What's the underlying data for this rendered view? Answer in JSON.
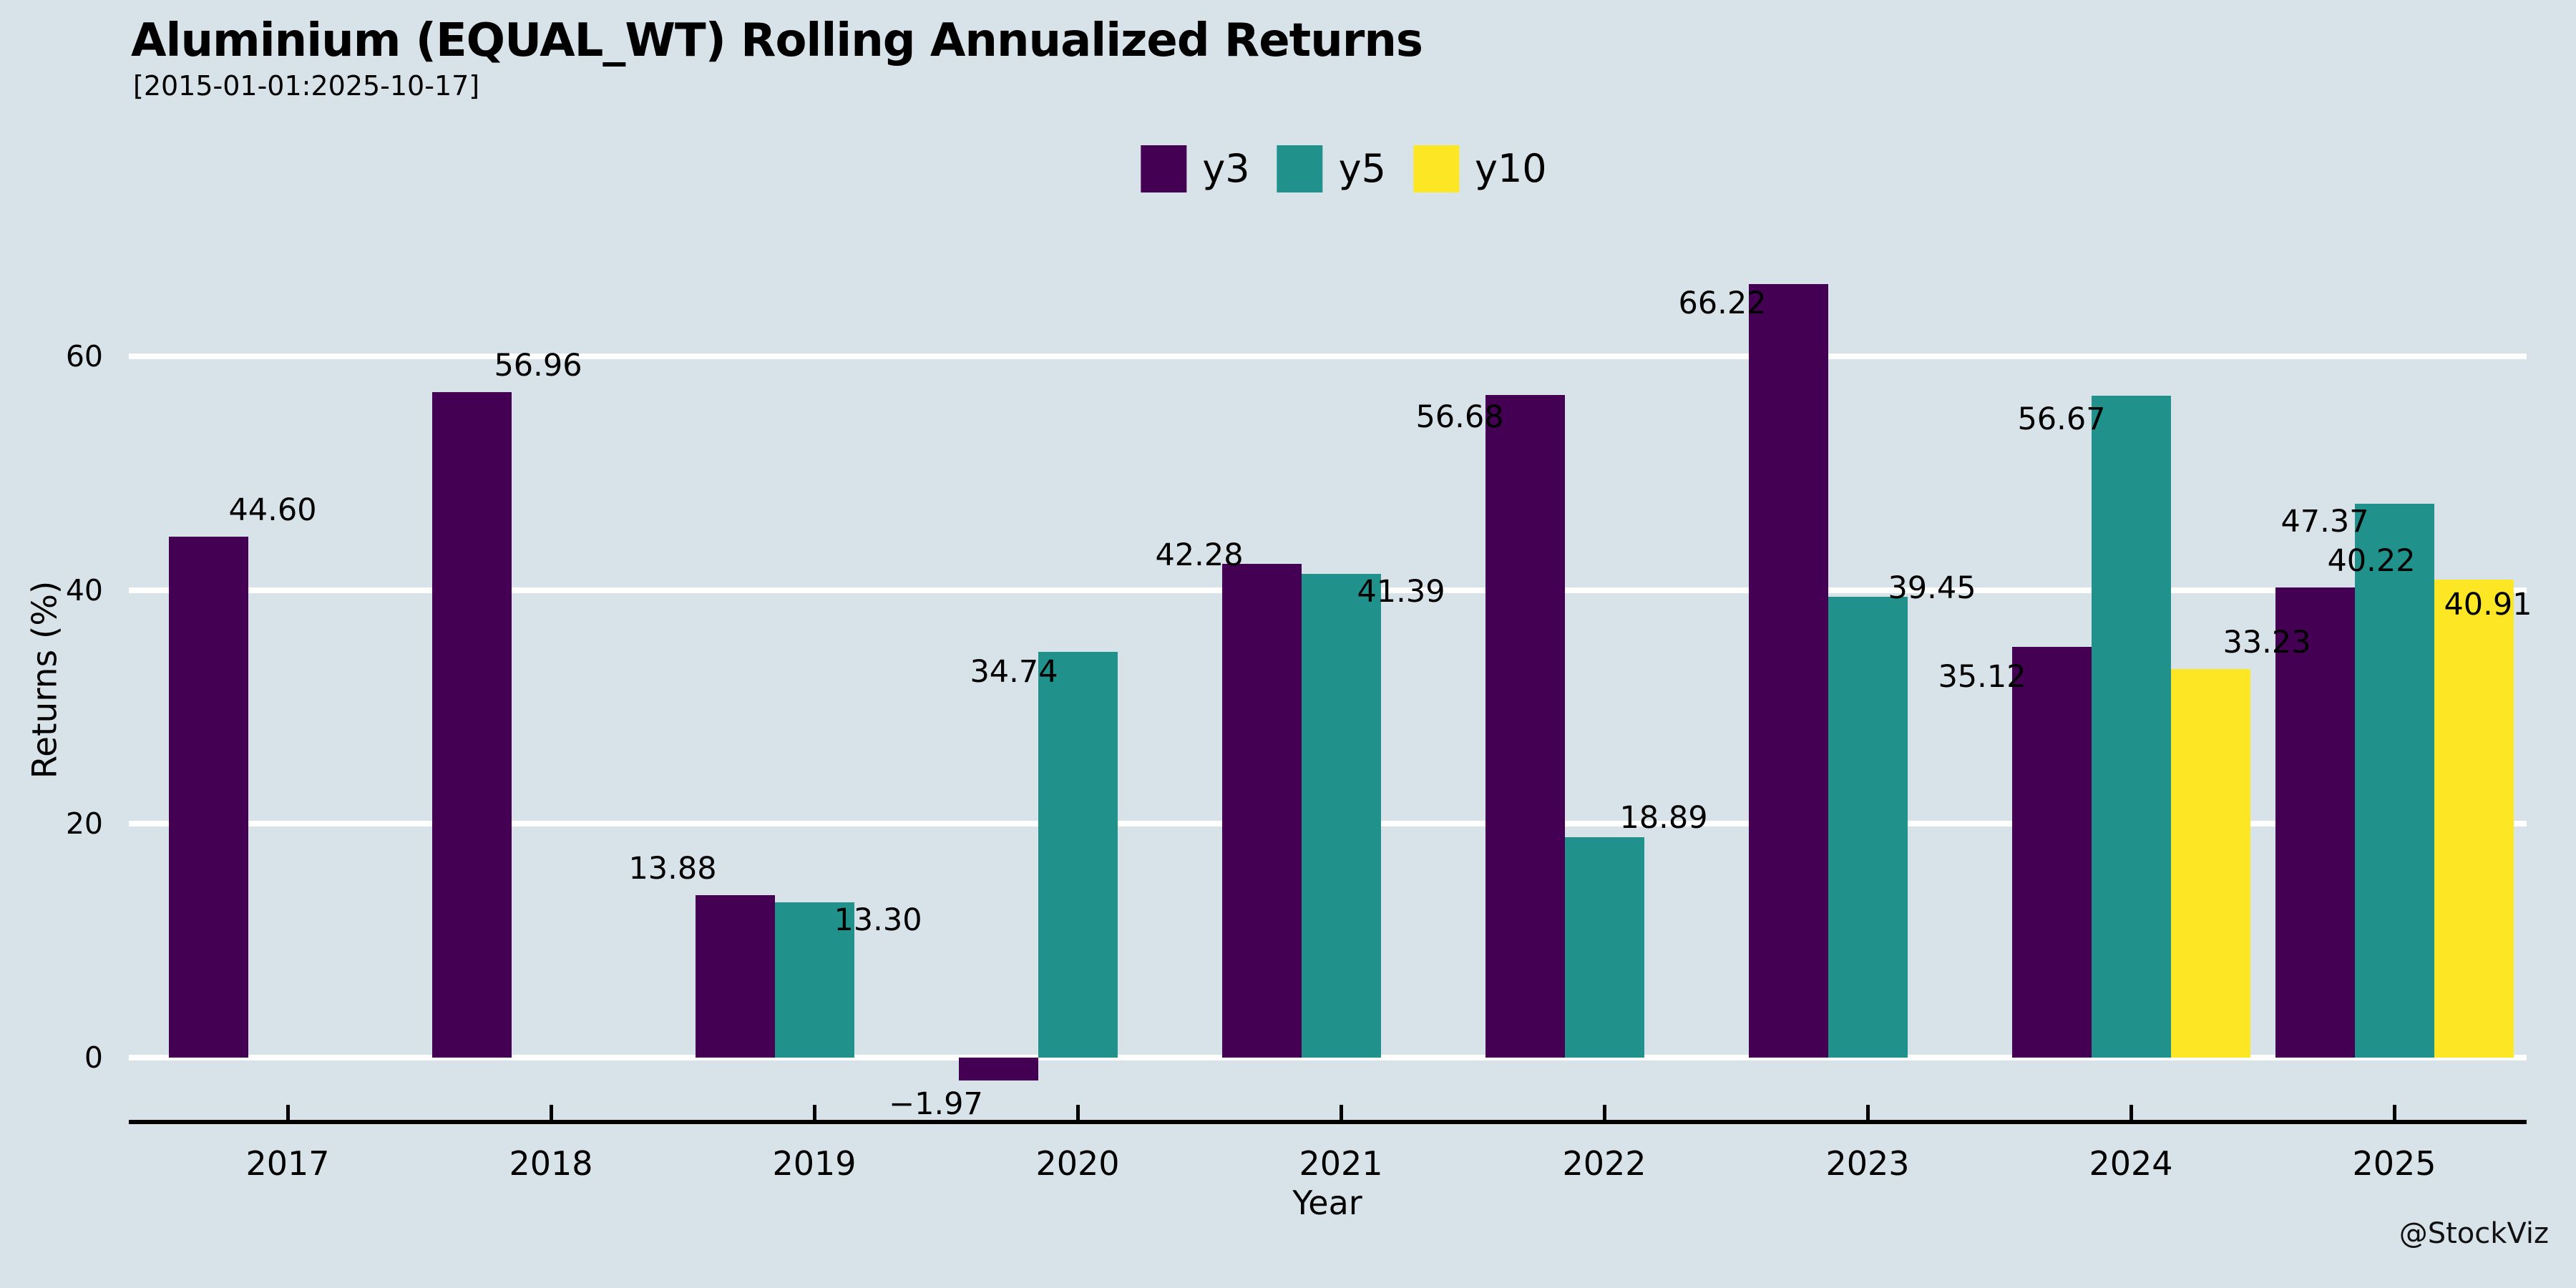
{
  "watermark": "@StockViz",
  "chart_data": {
    "type": "bar",
    "title": "Aluminium (EQUAL_WT) Rolling Annualized Returns",
    "subtitle": "[2015-01-01:2025-10-17]",
    "xlabel": "Year",
    "ylabel": "Returns (%)",
    "categories": [
      "2017",
      "2018",
      "2019",
      "2020",
      "2021",
      "2022",
      "2023",
      "2024",
      "2025"
    ],
    "series": [
      {
        "name": "y3",
        "color": "#440154",
        "values": [
          44.6,
          56.96,
          13.88,
          -1.97,
          42.28,
          56.68,
          66.22,
          35.12,
          40.22
        ]
      },
      {
        "name": "y5",
        "color": "#21918c",
        "values": [
          null,
          null,
          13.3,
          34.74,
          41.39,
          18.89,
          39.45,
          56.67,
          47.37
        ]
      },
      {
        "name": "y10",
        "color": "#fde725",
        "values": [
          null,
          null,
          null,
          null,
          null,
          null,
          null,
          33.23,
          40.91
        ]
      }
    ],
    "yticks": [
      0,
      20,
      40,
      60
    ],
    "ylim": [
      -5.5,
      72
    ],
    "grid": "horizontal",
    "gridline_color": "#ffffff",
    "background_color": "#d8e3e9",
    "axis_color": "#000000",
    "text_color": "#000000",
    "legend_position": "top-center",
    "value_label_format": "2-decimals",
    "label_offsets": {
      "2017-y3": [
        90,
        0
      ],
      "2018-y3": [
        93,
        0
      ],
      "2019-y3": [
        -87,
        0
      ],
      "2019-y5": [
        89,
        62
      ],
      "2020-y3": [
        -87,
        0
      ],
      "2020-y5": [
        -89,
        65
      ],
      "2021-y3": [
        -87,
        25
      ],
      "2021-y5": [
        84,
        62
      ],
      "2022-y3": [
        -91,
        68
      ],
      "2022-y5": [
        83,
        10
      ],
      "2023-y3": [
        -92,
        64
      ],
      "2023-y5": [
        90,
        25
      ],
      "2024-y3": [
        -97,
        79
      ],
      "2024-y5": [
        -97,
        70
      ],
      "2024-y10": [
        79,
        0
      ],
      "2025-y3": [
        79,
        0
      ],
      "2025-y5": [
        -97,
        62
      ],
      "2025-y10": [
        20,
        72
      ]
    }
  }
}
